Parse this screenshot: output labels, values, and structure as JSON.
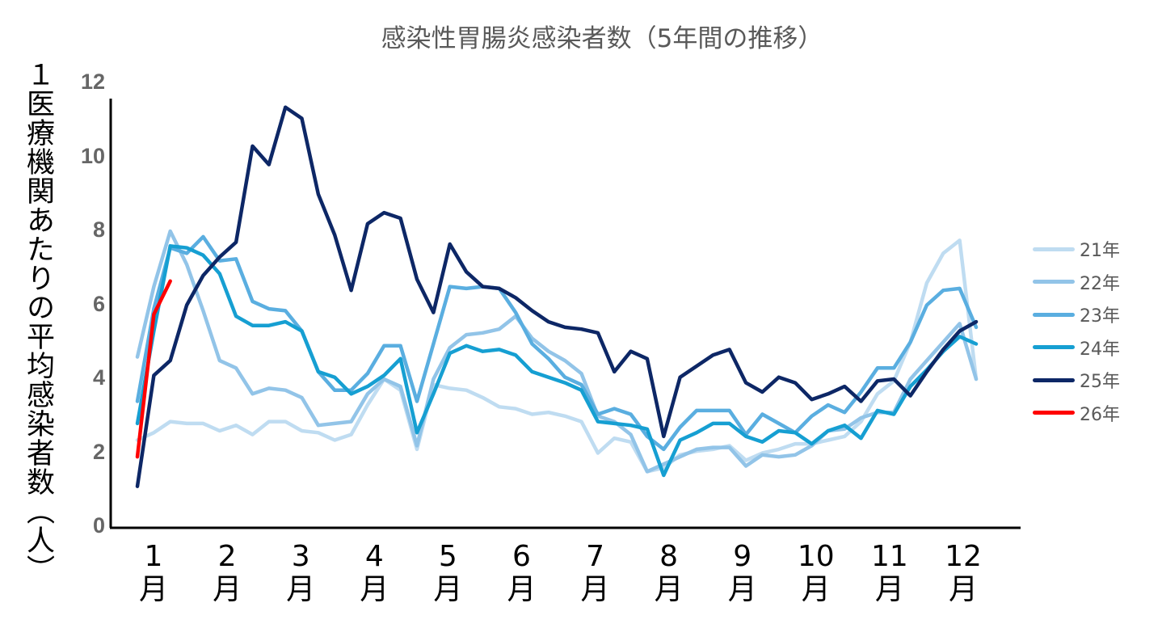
{
  "chart_data": {
    "type": "line",
    "title": "感染性胃腸炎感染者数（5年間の推移）",
    "ylabel": "１医療機関あたりの平均感染者数（人）",
    "xlabel": "",
    "ylim": [
      0,
      12
    ],
    "y_ticks": [
      "0",
      "2",
      "4",
      "6",
      "8",
      "10",
      "12"
    ],
    "x_tick_labels": [
      "1",
      "2",
      "3",
      "4",
      "5",
      "6",
      "7",
      "8",
      "9",
      "10",
      "11",
      "12"
    ],
    "x_tick_unit": "月",
    "x_unit": "week",
    "weeks_per_year": 52,
    "grid": false,
    "legend_position": "right",
    "series": [
      {
        "name": "21年",
        "color": "#bfdcf1",
        "values": [
          2.35,
          2.55,
          2.85,
          2.8,
          2.8,
          2.6,
          2.75,
          2.5,
          2.85,
          2.85,
          2.6,
          2.55,
          2.35,
          2.5,
          3.3,
          4.0,
          3.7,
          2.1,
          3.85,
          3.75,
          3.7,
          3.5,
          3.25,
          3.2,
          3.05,
          3.1,
          3.0,
          2.85,
          2.0,
          2.4,
          2.3,
          1.5,
          1.6,
          1.95,
          2.05,
          2.1,
          2.2,
          1.8,
          2.0,
          2.1,
          2.25,
          2.25,
          2.35,
          2.45,
          2.85,
          3.6,
          3.95,
          5.0,
          6.6,
          7.4,
          7.75,
          4.0
        ]
      },
      {
        "name": "22年",
        "color": "#92c4e8",
        "values": [
          4.6,
          6.5,
          8.0,
          7.1,
          5.85,
          4.5,
          4.3,
          3.6,
          3.75,
          3.7,
          3.5,
          2.75,
          2.8,
          2.85,
          3.6,
          4.0,
          3.8,
          2.2,
          4.0,
          4.85,
          5.2,
          5.25,
          5.35,
          5.7,
          5.1,
          4.75,
          4.5,
          4.15,
          3.0,
          2.85,
          2.5,
          1.5,
          1.7,
          1.9,
          2.1,
          2.15,
          2.15,
          1.65,
          1.95,
          1.9,
          1.95,
          2.2,
          2.6,
          2.65,
          2.95,
          3.1,
          3.1,
          4.0,
          4.5,
          5.0,
          5.5,
          4.0
        ]
      },
      {
        "name": "23年",
        "color": "#5aaee0",
        "values": [
          3.4,
          5.9,
          7.55,
          7.4,
          7.85,
          7.2,
          7.25,
          6.1,
          5.9,
          5.85,
          5.3,
          4.2,
          3.7,
          3.7,
          4.15,
          4.9,
          4.9,
          3.4,
          4.95,
          6.5,
          6.45,
          6.5,
          6.45,
          5.8,
          4.95,
          4.55,
          4.05,
          3.85,
          3.05,
          3.2,
          3.05,
          2.45,
          2.1,
          2.7,
          3.15,
          3.15,
          3.15,
          2.5,
          3.05,
          2.8,
          2.55,
          3.0,
          3.3,
          3.1,
          3.65,
          4.3,
          4.3,
          5.0,
          6.0,
          6.4,
          6.45,
          5.4
        ]
      },
      {
        "name": "24年",
        "color": "#169fd2",
        "values": [
          2.8,
          5.3,
          7.6,
          7.55,
          7.35,
          6.85,
          5.7,
          5.45,
          5.45,
          5.55,
          5.3,
          4.2,
          4.05,
          3.6,
          3.8,
          4.1,
          4.55,
          2.55,
          3.6,
          4.7,
          4.9,
          4.75,
          4.8,
          4.65,
          4.2,
          4.05,
          3.9,
          3.7,
          2.85,
          2.8,
          2.75,
          2.65,
          1.4,
          2.35,
          2.55,
          2.8,
          2.8,
          2.45,
          2.3,
          2.6,
          2.55,
          2.25,
          2.6,
          2.75,
          2.4,
          3.15,
          3.05,
          3.8,
          4.25,
          4.75,
          5.15,
          4.95
        ]
      },
      {
        "name": "25年",
        "color": "#0d2766",
        "values": [
          1.1,
          4.1,
          4.5,
          6.0,
          6.8,
          7.3,
          7.7,
          10.3,
          9.8,
          11.35,
          11.05,
          9.0,
          7.9,
          6.4,
          8.2,
          8.5,
          8.35,
          6.7,
          5.8,
          7.65,
          6.9,
          6.5,
          6.45,
          6.2,
          5.85,
          5.55,
          5.4,
          5.35,
          5.25,
          4.2,
          4.75,
          4.55,
          2.45,
          4.05,
          4.35,
          4.65,
          4.8,
          3.9,
          3.65,
          4.05,
          3.9,
          3.45,
          3.6,
          3.8,
          3.4,
          3.95,
          4.0,
          3.55,
          4.2,
          4.8,
          5.3,
          5.55
        ]
      },
      {
        "name": "26年",
        "color": "#ff0000",
        "values": [
          1.9,
          5.75,
          6.65
        ]
      }
    ]
  }
}
